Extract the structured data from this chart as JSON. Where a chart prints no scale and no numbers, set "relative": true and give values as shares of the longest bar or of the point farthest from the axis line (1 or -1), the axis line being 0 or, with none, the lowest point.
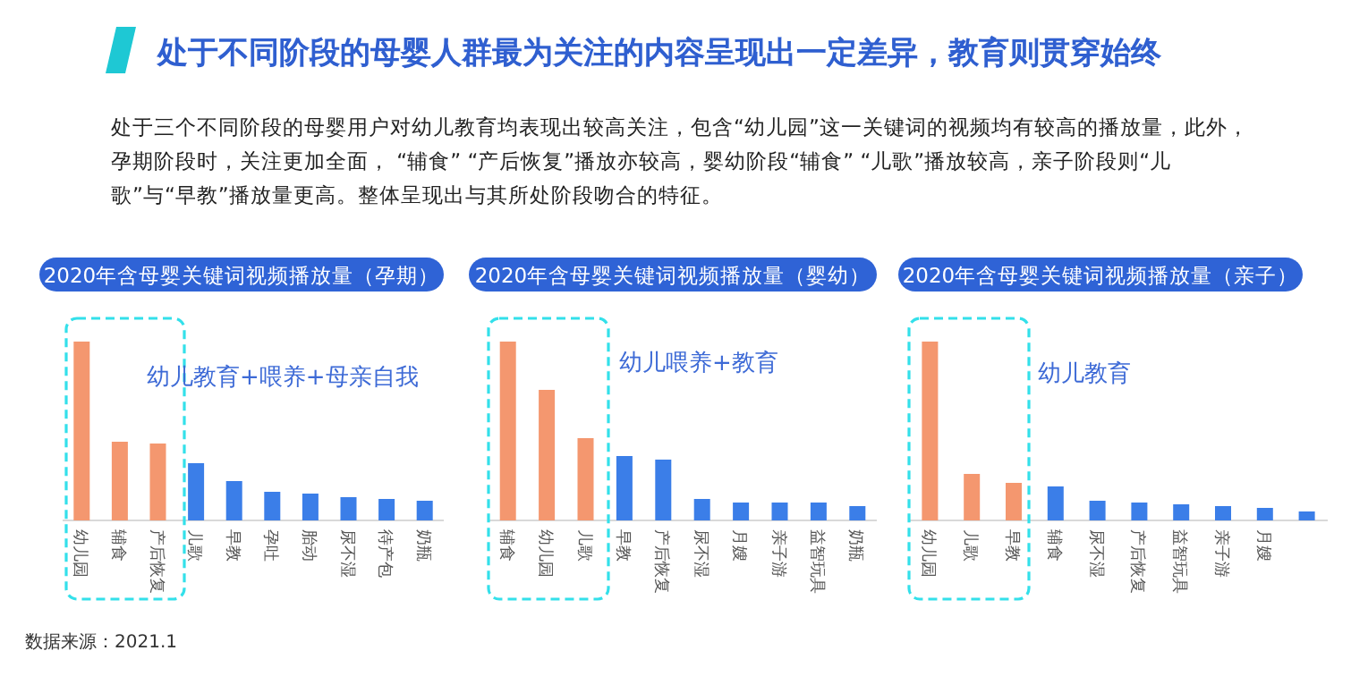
{
  "chart_data": [
    {
      "type": "other",
      "title": "处于不同阶段的母婴人群最为关注的内容呈现出一定差异，教育则贯穿始终",
      "subtitle": "处于三个不同阶段的母婴用户对幼儿教育均表现出较高关注，包含“幼儿园”这一关键词的视频均有较高的播放量，此外，孕期阶段时，关注更加全面，  “辅食”  “产后恢复”播放亦较高，婴幼阶段“辅食”  “儿歌”播放较高，亲子阶段则“儿歌”与“早教”播放量更高。整体呈现出与其所处阶段吻合的特征。",
      "annotations": [
        "数据来源：2021.1"
      ]
    },
    {
      "type": "bar",
      "relative": true,
      "title": "2020年含母婴关键词视频播放量（孕期）",
      "categories": [
        "幼儿园",
        "辅食",
        "产后恢复",
        "儿歌",
        "早教",
        "孕吐",
        "胎动",
        "尿不湿",
        "待产包",
        "奶瓶"
      ],
      "values": [
        1,
        0.44,
        0.43,
        0.32,
        0.22,
        0.16,
        0.15,
        0.13,
        0.12,
        0.11
      ],
      "colors": [
        "#f4976f",
        "#f4976f",
        "#f4976f",
        "#3b7ee8",
        "#3b7ee8",
        "#3b7ee8",
        "#3b7ee8",
        "#3b7ee8",
        "#3b7ee8",
        "#3b7ee8"
      ],
      "annotations": [
        "幼儿教育+喂养+母亲自我"
      ]
    },
    {
      "type": "bar",
      "relative": true,
      "title": "2020年含母婴关键词视频播放量（婴幼）",
      "categories": [
        "辅食",
        "幼儿园",
        "儿歌",
        "早教",
        "产后恢复",
        "尿不湿",
        "月嫂",
        "亲子游",
        "益智玩具",
        "奶瓶"
      ],
      "values": [
        1,
        0.73,
        0.46,
        0.36,
        0.34,
        0.12,
        0.1,
        0.1,
        0.1,
        0.08
      ],
      "colors": [
        "#f4976f",
        "#f4976f",
        "#f4976f",
        "#3b7ee8",
        "#3b7ee8",
        "#3b7ee8",
        "#3b7ee8",
        "#3b7ee8",
        "#3b7ee8",
        "#3b7ee8"
      ],
      "annotations": [
        "幼儿喂养+教育"
      ]
    },
    {
      "type": "bar",
      "relative": true,
      "title": "2020年含母婴关键词视频播放量（亲子）",
      "categories": [
        "幼儿园",
        "儿歌",
        "早教",
        "辅食",
        "尿不湿",
        "产后恢复",
        "益智玩具",
        "亲子游",
        "月嫂",
        null
      ],
      "values": [
        1,
        0.26,
        0.21,
        0.19,
        0.11,
        0.1,
        0.09,
        0.08,
        0.07,
        0.05
      ],
      "colors": [
        "#f4976f",
        "#f4976f",
        "#f4976f",
        "#3b7ee8",
        "#3b7ee8",
        "#3b7ee8",
        "#3b7ee8",
        "#3b7ee8",
        "#3b7ee8",
        "#3b7ee8"
      ],
      "annotations": [
        "幼儿教育"
      ]
    }
  ]
}
